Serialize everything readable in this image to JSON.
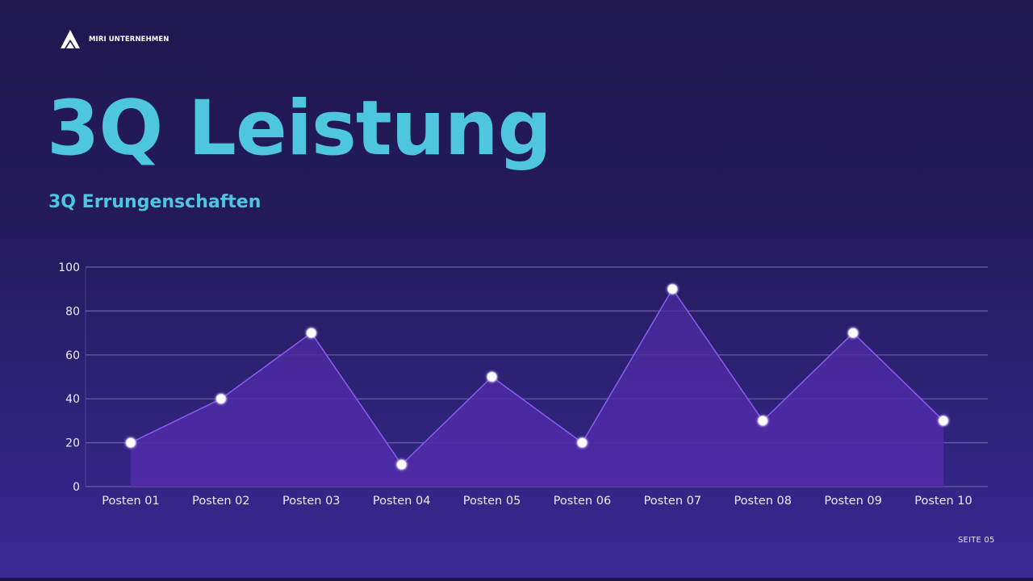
{
  "brand": {
    "name": "MIRI UNTERNEHMEN",
    "logo_icon": "triangle-logo-icon"
  },
  "header": {
    "title": "3Q Leistung",
    "subtitle": "3Q Errungenschaften"
  },
  "footer": {
    "page_label": "SEITE 05"
  },
  "colors": {
    "background_top": "#20184f",
    "background_bottom": "#3a2894",
    "title": "#4ec6e0",
    "area_fill": "#4a2aa0",
    "line": "#8a5cf0",
    "marker": "#ffffff",
    "gridline": "#6b62a8"
  },
  "chart_data": {
    "type": "area",
    "title": "",
    "categories": [
      "Posten 01",
      "Posten 02",
      "Posten 03",
      "Posten 04",
      "Posten 05",
      "Posten 06",
      "Posten 07",
      "Posten 08",
      "Posten 09",
      "Posten 10"
    ],
    "series": [
      {
        "name": "3Q Errungenschaften",
        "values": [
          20,
          40,
          70,
          10,
          50,
          20,
          90,
          30,
          70,
          30
        ]
      }
    ],
    "xlabel": "",
    "ylabel": "",
    "ylim": [
      0,
      100
    ],
    "yticks": [
      0,
      20,
      40,
      60,
      80,
      100
    ],
    "grid": true,
    "markers": true,
    "legend": "none"
  }
}
